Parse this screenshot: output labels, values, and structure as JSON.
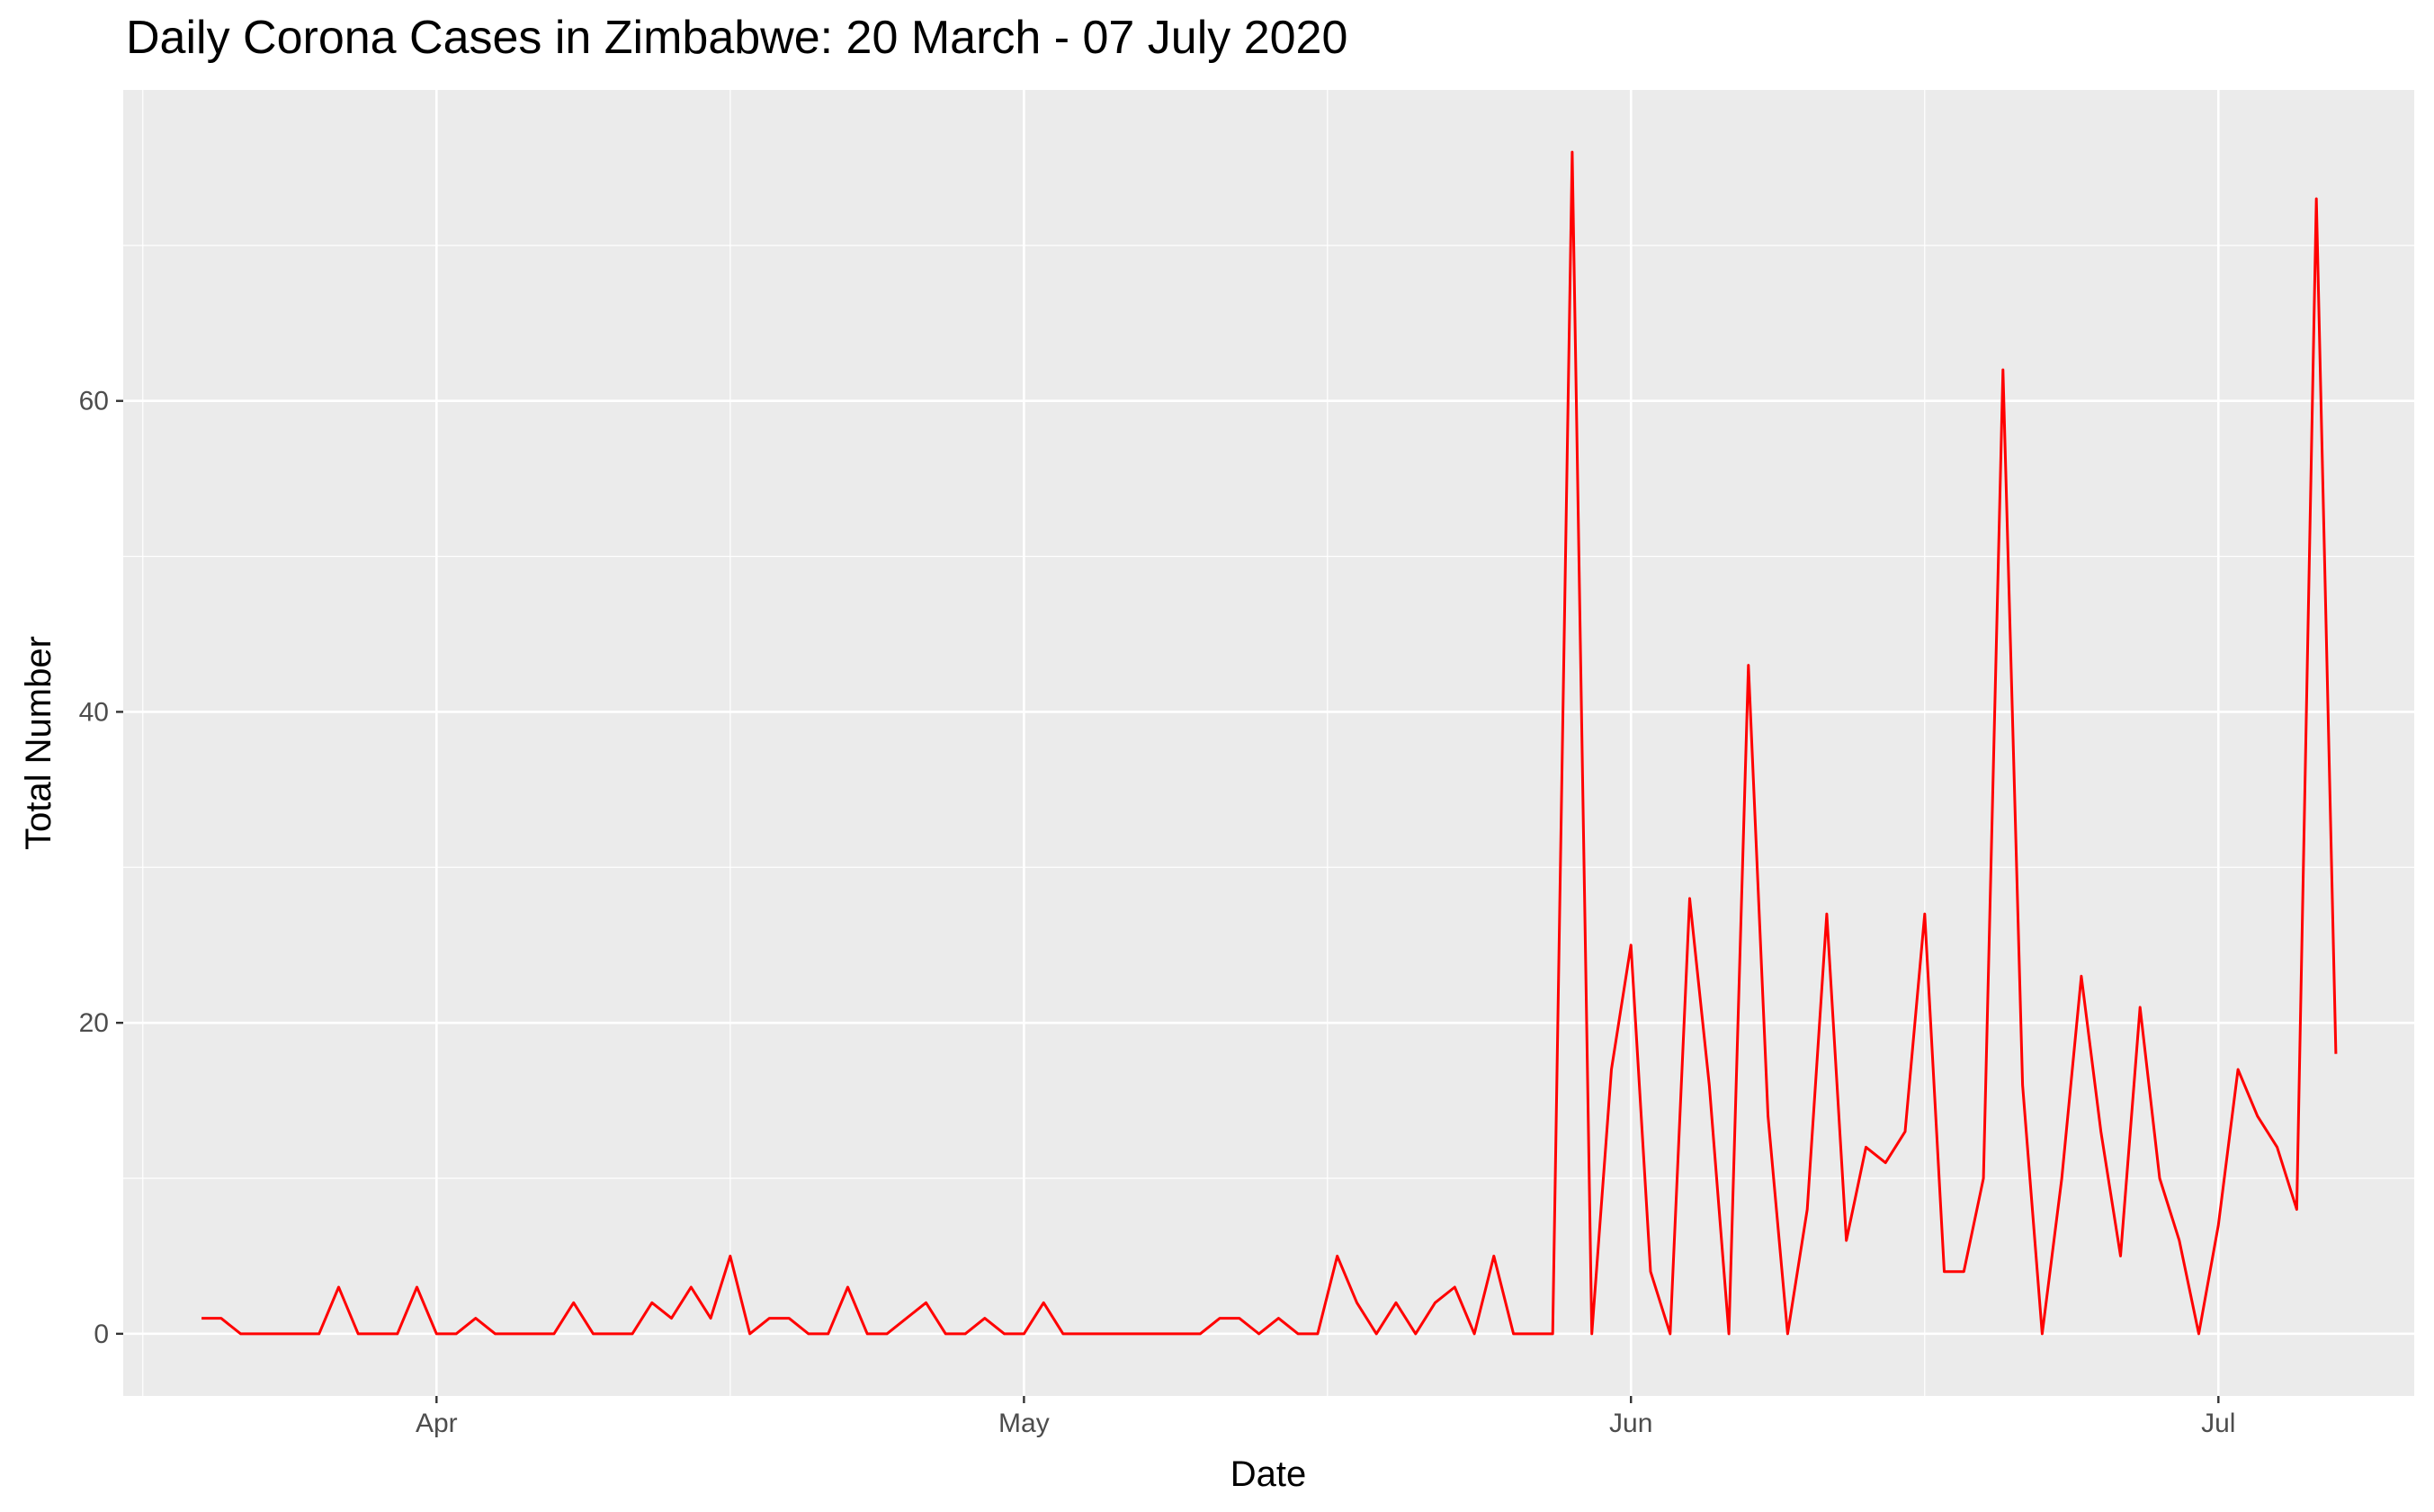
{
  "chart_data": {
    "type": "line",
    "title": "Daily Corona Cases in Zimbabwe: 20 March - 07 July 2020",
    "xlabel": "Date",
    "ylabel": "Total Number",
    "x_ticks": [
      {
        "date": "2020-04-01",
        "label": "Apr"
      },
      {
        "date": "2020-05-01",
        "label": "May"
      },
      {
        "date": "2020-06-01",
        "label": "Jun"
      },
      {
        "date": "2020-07-01",
        "label": "Jul"
      }
    ],
    "y_ticks": [
      0,
      20,
      40,
      60
    ],
    "xlim": [
      "2020-03-16",
      "2020-07-11"
    ],
    "ylim": [
      -4,
      80
    ],
    "grid": true,
    "series": [
      {
        "color": "#ff0000",
        "x": [
          "2020-03-20",
          "2020-03-21",
          "2020-03-22",
          "2020-03-23",
          "2020-03-24",
          "2020-03-25",
          "2020-03-26",
          "2020-03-27",
          "2020-03-28",
          "2020-03-29",
          "2020-03-30",
          "2020-03-31",
          "2020-04-01",
          "2020-04-02",
          "2020-04-03",
          "2020-04-04",
          "2020-04-05",
          "2020-04-06",
          "2020-04-07",
          "2020-04-08",
          "2020-04-09",
          "2020-04-10",
          "2020-04-11",
          "2020-04-12",
          "2020-04-13",
          "2020-04-14",
          "2020-04-15",
          "2020-04-16",
          "2020-04-17",
          "2020-04-18",
          "2020-04-19",
          "2020-04-20",
          "2020-04-21",
          "2020-04-22",
          "2020-04-23",
          "2020-04-24",
          "2020-04-25",
          "2020-04-26",
          "2020-04-27",
          "2020-04-28",
          "2020-04-29",
          "2020-04-30",
          "2020-05-01",
          "2020-05-02",
          "2020-05-03",
          "2020-05-04",
          "2020-05-05",
          "2020-05-06",
          "2020-05-07",
          "2020-05-08",
          "2020-05-09",
          "2020-05-10",
          "2020-05-11",
          "2020-05-12",
          "2020-05-13",
          "2020-05-14",
          "2020-05-15",
          "2020-05-16",
          "2020-05-17",
          "2020-05-18",
          "2020-05-19",
          "2020-05-20",
          "2020-05-21",
          "2020-05-22",
          "2020-05-23",
          "2020-05-24",
          "2020-05-25",
          "2020-05-26",
          "2020-05-27",
          "2020-05-28",
          "2020-05-29",
          "2020-05-30",
          "2020-05-31",
          "2020-06-01",
          "2020-06-02",
          "2020-06-03",
          "2020-06-04",
          "2020-06-05",
          "2020-06-06",
          "2020-06-07",
          "2020-06-08",
          "2020-06-09",
          "2020-06-10",
          "2020-06-11",
          "2020-06-12",
          "2020-06-13",
          "2020-06-14",
          "2020-06-15",
          "2020-06-16",
          "2020-06-17",
          "2020-06-18",
          "2020-06-19",
          "2020-06-20",
          "2020-06-21",
          "2020-06-22",
          "2020-06-23",
          "2020-06-24",
          "2020-06-25",
          "2020-06-26",
          "2020-06-27",
          "2020-06-28",
          "2020-06-29",
          "2020-06-30",
          "2020-07-01",
          "2020-07-02",
          "2020-07-03",
          "2020-07-04",
          "2020-07-05",
          "2020-07-06",
          "2020-07-07"
        ],
        "y": [
          1,
          1,
          0,
          0,
          0,
          0,
          0,
          3,
          0,
          0,
          0,
          3,
          0,
          0,
          1,
          0,
          0,
          0,
          0,
          2,
          0,
          0,
          0,
          2,
          1,
          3,
          1,
          5,
          0,
          1,
          1,
          0,
          0,
          3,
          0,
          0,
          1,
          2,
          0,
          0,
          1,
          0,
          0,
          2,
          0,
          0,
          0,
          0,
          0,
          0,
          0,
          0,
          1,
          1,
          0,
          1,
          0,
          0,
          5,
          2,
          0,
          2,
          0,
          2,
          3,
          0,
          5,
          0,
          0,
          0,
          76,
          0,
          17,
          25,
          4,
          0,
          28,
          16,
          0,
          43,
          14,
          0,
          8,
          27,
          6,
          12,
          11,
          13,
          27,
          4,
          4,
          10,
          62,
          16,
          0,
          10,
          23,
          13,
          5,
          21,
          10,
          6,
          0,
          7,
          17,
          14,
          12,
          8,
          73,
          18
        ]
      }
    ]
  }
}
